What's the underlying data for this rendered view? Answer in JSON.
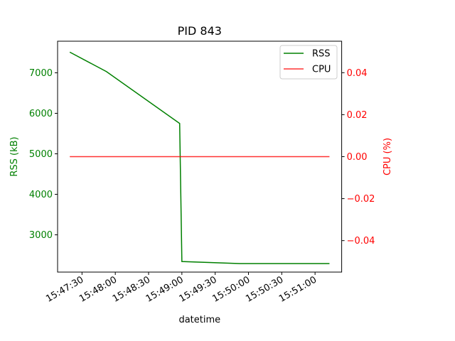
{
  "chart_data": {
    "type": "line",
    "title": "PID 843",
    "xlabel": "datetime",
    "ylabel_left": "RSS (kB)",
    "ylabel_right": "CPU (%)",
    "x_ticks": [
      "15:47:30",
      "15:48:00",
      "15:48:30",
      "15:49:00",
      "15:49:30",
      "15:50:00",
      "15:50:30",
      "15:51:00"
    ],
    "y_left_ticks": [
      "3000",
      "4000",
      "5000",
      "6000",
      "7000"
    ],
    "y_right_ticks": [
      "−0.04",
      "−0.02",
      "0.00",
      "0.02",
      "0.04"
    ],
    "y_left_lim": [
      2080,
      7780
    ],
    "y_right_lim": [
      -0.055,
      0.055
    ],
    "series": [
      {
        "name": "RSS",
        "axis": "left",
        "color": "#008000",
        "points": [
          [
            "15:47:19",
            7510
          ],
          [
            "15:47:52",
            7030
          ],
          [
            "15:48:58",
            5750
          ],
          [
            "15:49:00",
            2340
          ],
          [
            "15:49:52",
            2290
          ],
          [
            "15:51:13",
            2290
          ]
        ]
      },
      {
        "name": "CPU",
        "axis": "right",
        "color": "#ff0000",
        "points": [
          [
            "15:47:19",
            0.0
          ],
          [
            "15:51:13",
            0.0
          ]
        ]
      }
    ],
    "legend_position": "top-right",
    "grid": false
  }
}
